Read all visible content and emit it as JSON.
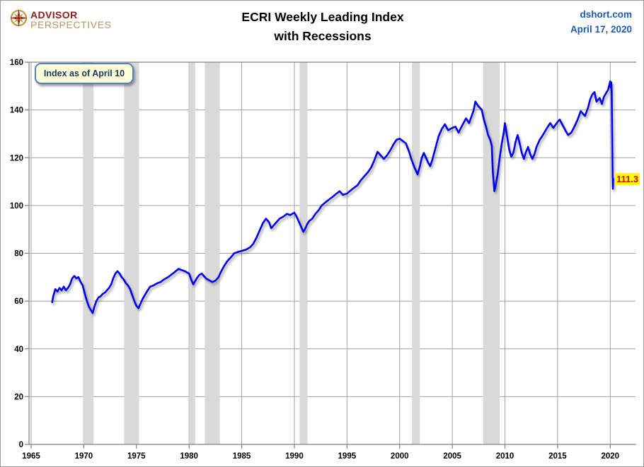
{
  "header": {
    "logo_line1": "ADVISOR",
    "logo_line2": "PERSPECTIVES",
    "title_line1": "ECRI Weekly Leading Index",
    "title_line2": "with Recessions",
    "source": "dshort.com",
    "date": "April 17, 2020"
  },
  "annotations": {
    "callout": "Index as of April 10",
    "last_value_label": "111.3"
  },
  "colors": {
    "line": "#0000ee",
    "recession_band": "#d9d9d9",
    "gridline": "#a0a0a0",
    "axis": "#808080",
    "tick_label": "#000000",
    "source_text": "#1f5ba9",
    "callout_bg": "#ffffd9",
    "callout_border": "#4f81bd",
    "callout_text": "#17365d",
    "last_value_bg": "#ffff00",
    "last_value_text": "#e00000",
    "logo_red": "#8c1d21",
    "logo_gold": "#b3995e"
  },
  "chart_data": {
    "type": "line",
    "title": "ECRI Weekly Leading Index with Recessions",
    "xlabel": "",
    "ylabel": "",
    "xlim": [
      1964.8,
      2022.4
    ],
    "ylim": [
      0,
      160
    ],
    "x_ticks": [
      1965,
      1970,
      1975,
      1980,
      1985,
      1990,
      1995,
      2000,
      2005,
      2010,
      2015,
      2020
    ],
    "y_ticks": [
      0,
      20,
      40,
      60,
      80,
      100,
      120,
      140,
      160
    ],
    "grid": true,
    "legend": "none",
    "last_value": 111.3,
    "recessions": [
      [
        1969.92,
        1970.92
      ],
      [
        1973.83,
        1975.25
      ],
      [
        1980.0,
        1980.58
      ],
      [
        1981.5,
        1982.92
      ],
      [
        1990.5,
        1991.25
      ],
      [
        2001.17,
        2001.92
      ],
      [
        2007.92,
        2009.5
      ]
    ],
    "series": [
      {
        "name": "ECRI Weekly Leading Index",
        "points": [
          [
            1967.0,
            59.5
          ],
          [
            1967.1,
            62
          ],
          [
            1967.3,
            65
          ],
          [
            1967.5,
            64
          ],
          [
            1967.7,
            65.5
          ],
          [
            1967.9,
            64.5
          ],
          [
            1968.1,
            66
          ],
          [
            1968.3,
            64.5
          ],
          [
            1968.5,
            65.5
          ],
          [
            1968.7,
            67
          ],
          [
            1968.9,
            69.5
          ],
          [
            1969.1,
            70.5
          ],
          [
            1969.3,
            69.5
          ],
          [
            1969.5,
            70
          ],
          [
            1969.7,
            68
          ],
          [
            1969.9,
            66.5
          ],
          [
            1970.1,
            63
          ],
          [
            1970.3,
            60
          ],
          [
            1970.5,
            57.5
          ],
          [
            1970.7,
            56
          ],
          [
            1970.85,
            55
          ],
          [
            1971.0,
            57.5
          ],
          [
            1971.2,
            60
          ],
          [
            1971.4,
            61.5
          ],
          [
            1971.6,
            62
          ],
          [
            1971.8,
            63
          ],
          [
            1972.0,
            63.5
          ],
          [
            1972.2,
            64.5
          ],
          [
            1972.4,
            65.5
          ],
          [
            1972.6,
            67
          ],
          [
            1972.8,
            69.5
          ],
          [
            1973.0,
            71.5
          ],
          [
            1973.2,
            72.5
          ],
          [
            1973.4,
            71.5
          ],
          [
            1973.6,
            70
          ],
          [
            1973.8,
            69
          ],
          [
            1974.0,
            67.5
          ],
          [
            1974.2,
            66.5
          ],
          [
            1974.4,
            65
          ],
          [
            1974.6,
            62.5
          ],
          [
            1974.8,
            60
          ],
          [
            1975.0,
            58
          ],
          [
            1975.2,
            57
          ],
          [
            1975.4,
            59
          ],
          [
            1975.6,
            61
          ],
          [
            1975.8,
            62.5
          ],
          [
            1976.0,
            64
          ],
          [
            1976.3,
            66
          ],
          [
            1976.6,
            66.5
          ],
          [
            1977.0,
            67.5
          ],
          [
            1977.3,
            68
          ],
          [
            1977.6,
            69
          ],
          [
            1978.0,
            70
          ],
          [
            1978.3,
            71
          ],
          [
            1978.6,
            72
          ],
          [
            1979.0,
            73.5
          ],
          [
            1979.3,
            73
          ],
          [
            1979.6,
            72.5
          ],
          [
            1980.0,
            71.5
          ],
          [
            1980.2,
            69
          ],
          [
            1980.4,
            67
          ],
          [
            1980.6,
            68.5
          ],
          [
            1980.8,
            70
          ],
          [
            1981.0,
            71
          ],
          [
            1981.2,
            71.5
          ],
          [
            1981.4,
            70.5
          ],
          [
            1981.6,
            69.5
          ],
          [
            1981.8,
            69
          ],
          [
            1982.0,
            68.5
          ],
          [
            1982.2,
            68
          ],
          [
            1982.5,
            68.5
          ],
          [
            1982.8,
            70
          ],
          [
            1983.0,
            72
          ],
          [
            1983.3,
            74.5
          ],
          [
            1983.6,
            76.5
          ],
          [
            1984.0,
            78.5
          ],
          [
            1984.3,
            80
          ],
          [
            1984.6,
            80.5
          ],
          [
            1985.0,
            81
          ],
          [
            1985.4,
            81.5
          ],
          [
            1985.8,
            82.5
          ],
          [
            1986.1,
            84
          ],
          [
            1986.4,
            86.5
          ],
          [
            1986.7,
            89.5
          ],
          [
            1987.0,
            92.5
          ],
          [
            1987.3,
            94.5
          ],
          [
            1987.6,
            93
          ],
          [
            1987.8,
            90.5
          ],
          [
            1988.0,
            91.5
          ],
          [
            1988.3,
            93
          ],
          [
            1988.6,
            94.5
          ],
          [
            1989.0,
            95.5
          ],
          [
            1989.3,
            96.5
          ],
          [
            1989.6,
            96
          ],
          [
            1990.0,
            97
          ],
          [
            1990.2,
            95.5
          ],
          [
            1990.4,
            93.5
          ],
          [
            1990.6,
            91.5
          ],
          [
            1990.85,
            89
          ],
          [
            1991.0,
            90
          ],
          [
            1991.2,
            92
          ],
          [
            1991.4,
            93.5
          ],
          [
            1991.7,
            94.5
          ],
          [
            1992.0,
            96.5
          ],
          [
            1992.3,
            98
          ],
          [
            1992.6,
            100
          ],
          [
            1993.0,
            101.5
          ],
          [
            1993.3,
            102.5
          ],
          [
            1993.6,
            103.5
          ],
          [
            1994.0,
            105
          ],
          [
            1994.3,
            106
          ],
          [
            1994.6,
            104.5
          ],
          [
            1995.0,
            105
          ],
          [
            1995.4,
            106.5
          ],
          [
            1995.7,
            107.5
          ],
          [
            1996.0,
            108.5
          ],
          [
            1996.3,
            110.5
          ],
          [
            1996.6,
            112
          ],
          [
            1997.0,
            114
          ],
          [
            1997.3,
            116
          ],
          [
            1997.6,
            119
          ],
          [
            1997.9,
            122.5
          ],
          [
            1998.2,
            121
          ],
          [
            1998.5,
            119.5
          ],
          [
            1998.8,
            121
          ],
          [
            1999.1,
            123
          ],
          [
            1999.4,
            125.5
          ],
          [
            1999.7,
            127.5
          ],
          [
            2000.0,
            128
          ],
          [
            2000.3,
            127
          ],
          [
            2000.6,
            126
          ],
          [
            2000.9,
            122.5
          ],
          [
            2001.1,
            119.5
          ],
          [
            2001.4,
            116
          ],
          [
            2001.7,
            113
          ],
          [
            2001.9,
            116
          ],
          [
            2002.1,
            120
          ],
          [
            2002.3,
            122
          ],
          [
            2002.5,
            120
          ],
          [
            2002.7,
            118
          ],
          [
            2002.9,
            116.5
          ],
          [
            2003.1,
            119
          ],
          [
            2003.4,
            124
          ],
          [
            2003.7,
            129
          ],
          [
            2004.0,
            132
          ],
          [
            2004.3,
            134
          ],
          [
            2004.6,
            131.5
          ],
          [
            2005.0,
            132.5
          ],
          [
            2005.3,
            133
          ],
          [
            2005.6,
            130.5
          ],
          [
            2006.0,
            134
          ],
          [
            2006.3,
            136.5
          ],
          [
            2006.6,
            134.5
          ],
          [
            2007.0,
            139.5
          ],
          [
            2007.2,
            143.5
          ],
          [
            2007.4,
            142
          ],
          [
            2007.6,
            141
          ],
          [
            2007.8,
            140
          ],
          [
            2008.0,
            136
          ],
          [
            2008.2,
            133
          ],
          [
            2008.4,
            129.5
          ],
          [
            2008.6,
            127.5
          ],
          [
            2008.75,
            125
          ],
          [
            2008.85,
            114
          ],
          [
            2009.0,
            106
          ],
          [
            2009.1,
            108
          ],
          [
            2009.3,
            113
          ],
          [
            2009.5,
            120
          ],
          [
            2009.7,
            126
          ],
          [
            2009.9,
            131
          ],
          [
            2010.0,
            134.5
          ],
          [
            2010.2,
            129
          ],
          [
            2010.4,
            123.5
          ],
          [
            2010.6,
            120.5
          ],
          [
            2010.8,
            122
          ],
          [
            2011.0,
            126.5
          ],
          [
            2011.2,
            129.5
          ],
          [
            2011.4,
            126
          ],
          [
            2011.6,
            122
          ],
          [
            2011.8,
            119.5
          ],
          [
            2012.0,
            122.5
          ],
          [
            2012.2,
            124.5
          ],
          [
            2012.4,
            121.5
          ],
          [
            2012.6,
            119.5
          ],
          [
            2012.8,
            121.5
          ],
          [
            2013.0,
            124.5
          ],
          [
            2013.3,
            127.5
          ],
          [
            2013.6,
            129.5
          ],
          [
            2014.0,
            132.5
          ],
          [
            2014.3,
            134.5
          ],
          [
            2014.6,
            132.5
          ],
          [
            2015.0,
            135
          ],
          [
            2015.2,
            136
          ],
          [
            2015.5,
            133.5
          ],
          [
            2015.8,
            131
          ],
          [
            2016.0,
            129.5
          ],
          [
            2016.3,
            130.5
          ],
          [
            2016.6,
            133
          ],
          [
            2016.9,
            136
          ],
          [
            2017.2,
            139.5
          ],
          [
            2017.4,
            138.5
          ],
          [
            2017.6,
            137.5
          ],
          [
            2017.9,
            141
          ],
          [
            2018.1,
            144.5
          ],
          [
            2018.3,
            146.5
          ],
          [
            2018.5,
            147.5
          ],
          [
            2018.7,
            143.5
          ],
          [
            2018.9,
            144.5
          ],
          [
            2019.0,
            145
          ],
          [
            2019.2,
            142.5
          ],
          [
            2019.4,
            145.5
          ],
          [
            2019.6,
            147
          ],
          [
            2019.8,
            148.5
          ],
          [
            2020.0,
            152
          ],
          [
            2020.05,
            149.5
          ],
          [
            2020.1,
            151.5
          ],
          [
            2020.14,
            147
          ],
          [
            2020.18,
            130
          ],
          [
            2020.22,
            112
          ],
          [
            2020.25,
            107
          ],
          [
            2020.28,
            111.3
          ]
        ]
      }
    ]
  }
}
